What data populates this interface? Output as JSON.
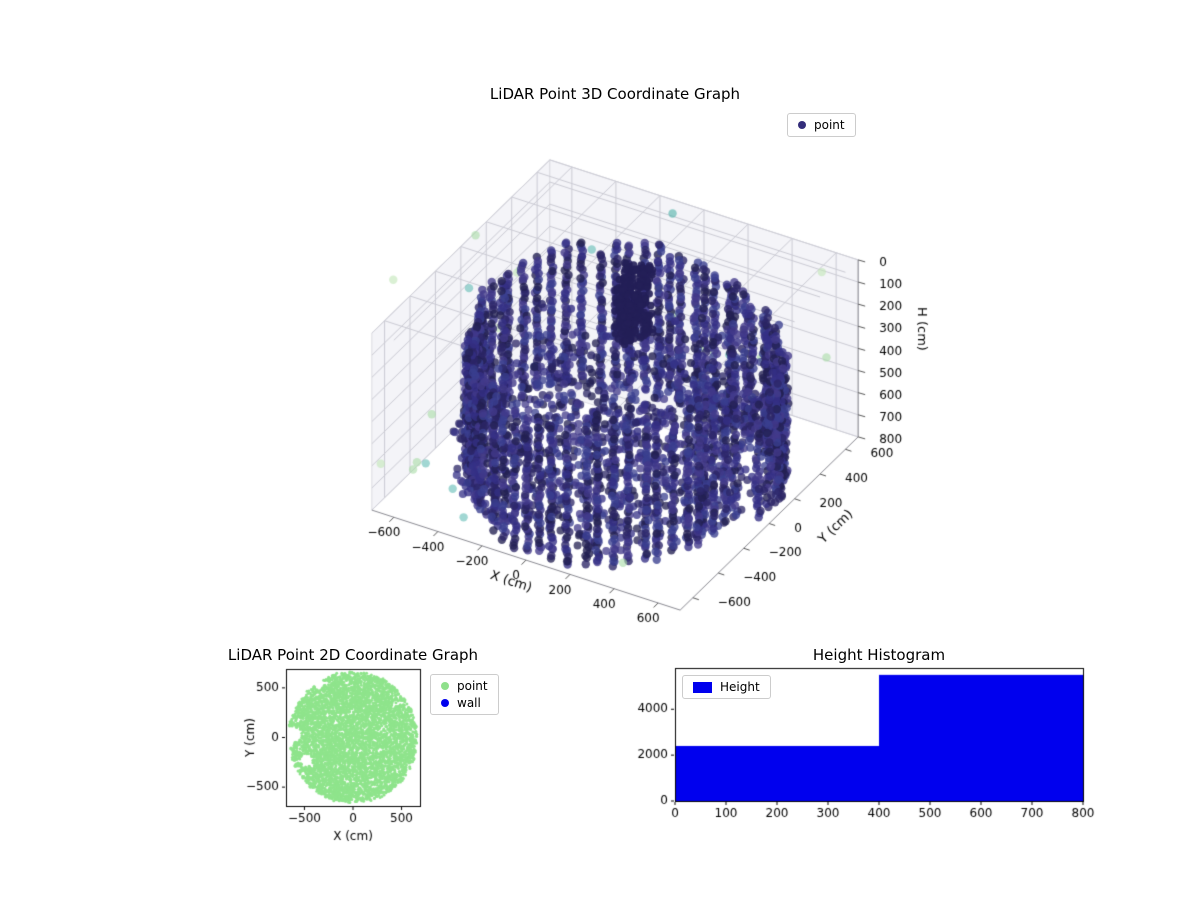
{
  "figure": {
    "background": "#ffffff"
  },
  "chart_data": [
    {
      "type": "scatter3d",
      "title": "LiDAR Point 3D Coordinate Graph",
      "xlabel": "X (cm)",
      "ylabel": "Y (cm)",
      "zlabel": "H (cm)",
      "xlim": [
        -700,
        700
      ],
      "ylim": [
        -700,
        700
      ],
      "zlim": [
        0,
        800
      ],
      "xticks": [
        -600,
        -400,
        -200,
        0,
        200,
        400,
        600
      ],
      "yticks": [
        -600,
        -400,
        -200,
        0,
        200,
        400,
        600
      ],
      "zticks": [
        0,
        100,
        200,
        300,
        400,
        500,
        600,
        700,
        800
      ],
      "z_axis_inverted": true,
      "view": "elev 30, azim -60",
      "legend": [
        {
          "label": "point",
          "color": "#332d7a"
        }
      ],
      "point_color_palette": [
        "#2b2566",
        "#343085",
        "#3a3f8f",
        "#423a8a",
        "#232052"
      ],
      "outlier_colors": [
        "#4fb0a8",
        "#63bdb5",
        "#a8dca6",
        "#c2e6b8"
      ],
      "structure": {
        "seed": 42,
        "wall": {
          "shape": "cylinder",
          "radius_cm": 600,
          "radius_wave": 45,
          "radius_jitter": 30,
          "top_h_cm_min": 120,
          "top_h_cm_max": 255,
          "bottom_h_cm": 800,
          "columns": 66,
          "h_step_cm": 13
        },
        "floor": {
          "count": 900,
          "radius_cm": 640,
          "h_range": [
            470,
            790
          ]
        },
        "center_cluster": {
          "center_xy": [
            -60,
            250
          ],
          "radius_cm": 70,
          "h_range": [
            40,
            340
          ],
          "count": 260
        },
        "interior_scatter": {
          "count": 110,
          "radius_cm": 480,
          "h_range": [
            230,
            470
          ]
        },
        "outliers": {
          "count": 24,
          "radius_range_cm": [
            700,
            1080
          ],
          "h_range": [
            0,
            820
          ]
        }
      }
    },
    {
      "type": "scatter",
      "title": "LiDAR Point 2D Coordinate Graph",
      "xlabel": "X (cm)",
      "ylabel": "Y (cm)",
      "xlim": [
        -690,
        690
      ],
      "ylim": [
        -690,
        690
      ],
      "xticks": [
        -500,
        0,
        500
      ],
      "yticks": [
        -500,
        0,
        500
      ],
      "legend": [
        {
          "label": "point",
          "color": "#8fe08b"
        },
        {
          "label": "wall",
          "color": "#0000ee"
        }
      ],
      "point_region": {
        "shape": "disk",
        "radius_cm": 660,
        "color": "#8fe48c",
        "count": 5200,
        "seed": 7,
        "holes_xy_r": [
          [
            -560,
            470,
            85
          ],
          [
            -600,
            30,
            70
          ],
          [
            -480,
            -230,
            65
          ],
          [
            -350,
            540,
            55
          ],
          [
            -645,
            -60,
            40
          ]
        ]
      }
    },
    {
      "type": "histogram",
      "title": "Height Histogram",
      "legend": [
        {
          "label": "Height",
          "color": "#0000ee"
        }
      ],
      "bar_color": "#0000ee",
      "bins": [
        {
          "range": [
            0,
            400
          ],
          "count": 2400
        },
        {
          "range": [
            400,
            800
          ],
          "count": 5500
        }
      ],
      "xlim": [
        0,
        800
      ],
      "ylim": [
        0,
        5800
      ],
      "xticks": [
        0,
        100,
        200,
        300,
        400,
        500,
        600,
        700,
        800
      ],
      "yticks": [
        0,
        2000,
        4000
      ]
    }
  ]
}
